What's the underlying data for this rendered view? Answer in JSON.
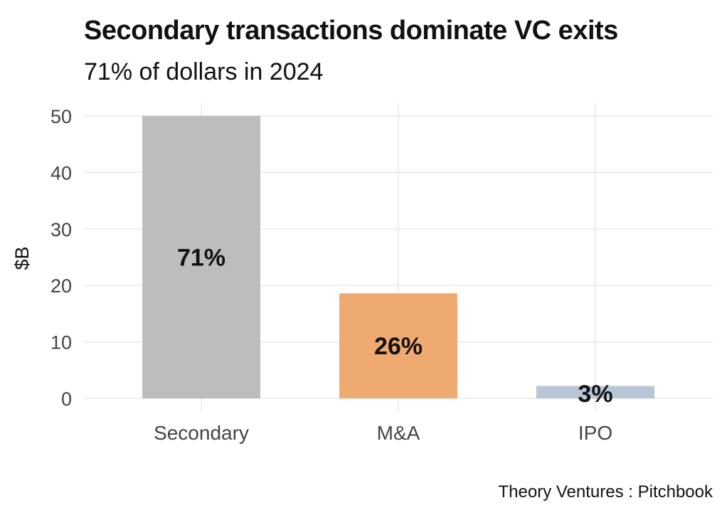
{
  "chart_data": {
    "type": "bar",
    "title": "Secondary transactions dominate VC exits",
    "subtitle": "71% of dollars in 2024",
    "categories": [
      "Secondary",
      "M&A",
      "IPO"
    ],
    "values": [
      50,
      18.6,
      2.2
    ],
    "data_labels": [
      "71%",
      "26%",
      "3%"
    ],
    "colors": [
      "#bdbdbd",
      "#eeaa70",
      "#b7c7d7"
    ],
    "xlabel": "",
    "ylabel": "$B",
    "ylim": [
      0,
      50
    ],
    "yticks": [
      0,
      10,
      20,
      30,
      40,
      50
    ],
    "grid": true,
    "legend": "none",
    "source": "Theory Ventures : Pitchbook"
  }
}
